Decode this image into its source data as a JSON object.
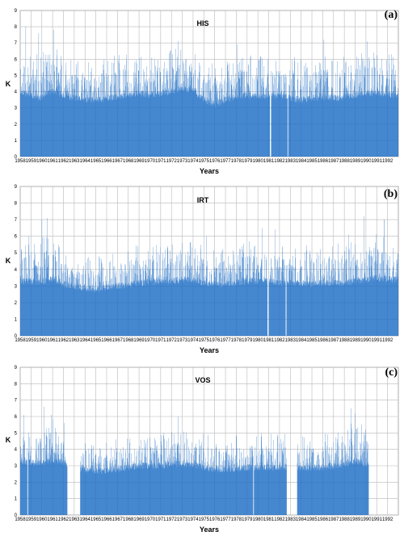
{
  "colors": {
    "series": "#1f6fc5",
    "grid": "#b8b8b8",
    "text": "#000000"
  },
  "chart_data": [
    {
      "type": "bar",
      "title": "HIS",
      "panel": "(a)",
      "xlabel": "Years",
      "ylabel": "K",
      "ylim": [
        0,
        9
      ],
      "yticks": [
        0,
        1,
        2,
        3,
        4,
        5,
        6,
        7,
        8,
        9
      ],
      "xticks": [
        "1958",
        "1959",
        "1960",
        "1961",
        "1962",
        "1963",
        "1964",
        "1965",
        "1966",
        "1967",
        "1968",
        "1969",
        "1970",
        "1971",
        "1972",
        "1973",
        "1974",
        "1975",
        "1976",
        "1977",
        "1978",
        "1979",
        "1980",
        "1981",
        "1982",
        "1983",
        "1984",
        "1985",
        "1986",
        "1987",
        "1988",
        "1989",
        "1990",
        "1991",
        "1992"
      ],
      "grid": true,
      "x_range_years": [
        1958,
        1993
      ],
      "profile": {
        "years": [
          1958,
          1959,
          1960,
          1961,
          1962,
          1963,
          1964,
          1965,
          1966,
          1967,
          1968,
          1969,
          1970,
          1971,
          1972,
          1973,
          1974,
          1975,
          1976,
          1977,
          1978,
          1979,
          1980,
          1981,
          1982,
          1983,
          1984,
          1985,
          1986,
          1987,
          1988,
          1989,
          1990,
          1991,
          1992,
          1993
        ],
        "base": [
          3.8,
          3.6,
          3.4,
          3.9,
          3.6,
          3.4,
          3.3,
          3.3,
          3.4,
          3.5,
          3.6,
          3.7,
          3.6,
          3.7,
          3.8,
          4.0,
          3.9,
          3.3,
          3.0,
          3.3,
          3.5,
          3.6,
          3.5,
          3.5,
          3.6,
          3.4,
          3.3,
          3.4,
          3.5,
          3.4,
          3.4,
          3.6,
          3.7,
          3.7,
          3.6,
          3.6
        ],
        "peak": [
          6.3,
          6.2,
          6.0,
          6.7,
          5.8,
          5.6,
          5.5,
          5.7,
          5.8,
          5.9,
          6.0,
          6.0,
          6.0,
          6.1,
          6.2,
          6.4,
          6.1,
          5.7,
          5.4,
          5.7,
          5.9,
          6.0,
          5.9,
          5.8,
          6.0,
          5.8,
          5.7,
          5.8,
          6.1,
          5.9,
          5.9,
          6.0,
          6.1,
          6.2,
          6.0,
          6.0
        ],
        "max_spikes": [
          [
            1958.5,
            8.0
          ],
          [
            1959.7,
            7.6
          ],
          [
            1961.1,
            7.8
          ],
          [
            1972.6,
            7.1
          ],
          [
            1978.1,
            6.9
          ],
          [
            1986.1,
            7.2
          ],
          [
            1990.1,
            7.1
          ],
          [
            1981.2,
            6.8
          ]
        ]
      },
      "gaps": [
        [
          1981.1,
          1981.22
        ],
        [
          1982.72,
          1982.8
        ]
      ],
      "seed": 11
    },
    {
      "type": "bar",
      "title": "IRT",
      "panel": "(b)",
      "xlabel": "Years",
      "ylabel": "K",
      "ylim": [
        0,
        9
      ],
      "yticks": [
        0,
        1,
        2,
        3,
        4,
        5,
        6,
        7,
        8,
        9
      ],
      "xticks": [
        "1958",
        "1959",
        "1960",
        "1961",
        "1962",
        "1963",
        "1964",
        "1965",
        "1966",
        "1967",
        "1968",
        "1969",
        "1970",
        "1971",
        "1972",
        "1973",
        "1974",
        "1975",
        "1976",
        "1977",
        "1978",
        "1979",
        "1980",
        "1981",
        "1982",
        "1983",
        "1984",
        "1985",
        "1986",
        "1987",
        "1988",
        "1989",
        "1990",
        "1991",
        "1992"
      ],
      "grid": true,
      "x_range_years": [
        1958,
        1993
      ],
      "profile": {
        "years": [
          1958,
          1959,
          1960,
          1961,
          1962,
          1963,
          1964,
          1965,
          1966,
          1967,
          1968,
          1969,
          1970,
          1971,
          1972,
          1973,
          1974,
          1975,
          1976,
          1977,
          1978,
          1979,
          1980,
          1981,
          1982,
          1983,
          1984,
          1985,
          1986,
          1987,
          1988,
          1989,
          1990,
          1991,
          1992,
          1993
        ],
        "base": [
          3.1,
          3.1,
          3.0,
          3.3,
          2.9,
          2.8,
          2.7,
          2.6,
          2.7,
          2.8,
          2.9,
          3.0,
          3.0,
          3.1,
          3.1,
          3.2,
          3.2,
          3.0,
          2.9,
          2.9,
          3.0,
          3.1,
          3.1,
          3.1,
          3.0,
          3.0,
          3.0,
          2.9,
          3.0,
          3.0,
          3.0,
          3.1,
          3.2,
          3.3,
          3.2,
          3.2
        ],
        "peak": [
          5.3,
          5.4,
          5.6,
          6.2,
          4.9,
          4.6,
          4.5,
          4.5,
          4.7,
          4.9,
          5.0,
          5.2,
          5.1,
          5.3,
          5.4,
          5.6,
          5.5,
          5.2,
          5.0,
          5.1,
          5.2,
          5.4,
          5.3,
          5.3,
          5.3,
          5.2,
          5.2,
          5.1,
          5.2,
          5.3,
          5.2,
          5.4,
          5.8,
          5.8,
          5.6,
          5.6
        ],
        "max_spikes": [
          [
            1960.0,
            7.0
          ],
          [
            1960.5,
            7.1
          ],
          [
            1958.8,
            6.0
          ],
          [
            1980.4,
            6.5
          ],
          [
            1981.6,
            6.4
          ],
          [
            1989.8,
            7.2
          ],
          [
            1991.7,
            7.0
          ],
          [
            1975.2,
            6.0
          ],
          [
            1988.4,
            6.1
          ]
        ]
      },
      "gaps": [
        [
          1980.88,
          1981.0
        ],
        [
          1982.55,
          1982.63
        ]
      ],
      "seed": 29
    },
    {
      "type": "bar",
      "title": "VOS",
      "panel": "(c)",
      "xlabel": "Years",
      "ylabel": "K",
      "ylim": [
        0,
        9
      ],
      "yticks": [
        0,
        1,
        2,
        3,
        4,
        5,
        6,
        7,
        8,
        9
      ],
      "xticks": [
        "1958",
        "1959",
        "1960",
        "1961",
        "1962",
        "1963",
        "1964",
        "1965",
        "1966",
        "1967",
        "1968",
        "1969",
        "1970",
        "1971",
        "1972",
        "1973",
        "1974",
        "1975",
        "1976",
        "1977",
        "1978",
        "1979",
        "1980",
        "1981",
        "1982",
        "1983",
        "1984",
        "1985",
        "1986",
        "1987",
        "1988",
        "1989",
        "1990",
        "1991",
        "1992"
      ],
      "grid": true,
      "x_range_years": [
        1958,
        1993
      ],
      "profile": {
        "years": [
          1958,
          1959,
          1960,
          1961,
          1962,
          1963,
          1964,
          1965,
          1966,
          1967,
          1968,
          1969,
          1970,
          1971,
          1972,
          1973,
          1974,
          1975,
          1976,
          1977,
          1978,
          1979,
          1980,
          1981,
          1982,
          1983,
          1984,
          1985,
          1986,
          1987,
          1988,
          1989,
          1990,
          1991,
          1992,
          1993
        ],
        "base": [
          3.1,
          3.0,
          3.0,
          3.2,
          3.0,
          2.6,
          2.6,
          2.5,
          2.5,
          2.6,
          2.7,
          2.8,
          2.8,
          2.8,
          2.9,
          2.9,
          2.9,
          2.7,
          2.6,
          2.6,
          2.6,
          2.7,
          2.7,
          2.7,
          2.7,
          2.7,
          2.7,
          2.7,
          2.7,
          2.8,
          2.9,
          3.1,
          2.9,
          2.9,
          2.9,
          2.9
        ],
        "peak": [
          5.0,
          5.2,
          5.3,
          5.8,
          4.8,
          4.3,
          4.2,
          4.2,
          4.3,
          4.4,
          4.5,
          4.6,
          4.6,
          4.7,
          4.8,
          4.9,
          4.9,
          4.7,
          4.5,
          4.5,
          4.6,
          4.7,
          4.7,
          4.7,
          4.7,
          4.6,
          4.6,
          4.6,
          4.7,
          4.8,
          4.9,
          5.5,
          5.0,
          5.0,
          5.0,
          5.0
        ],
        "max_spikes": [
          [
            1958.3,
            6.1
          ],
          [
            1960.2,
            6.6
          ],
          [
            1960.9,
            6.1
          ],
          [
            1962.1,
            5.6
          ],
          [
            1972.6,
            6.0
          ],
          [
            1988.6,
            6.5
          ],
          [
            1989.0,
            6.2
          ],
          [
            1979.6,
            5.3
          ]
        ]
      },
      "gaps": [
        [
          1958.65,
          1958.72
        ],
        [
          1962.35,
          1963.55
        ],
        [
          1979.55,
          1979.62
        ],
        [
          1982.65,
          1983.62
        ],
        [
          1990.25,
          1993.0
        ]
      ],
      "seed": 47
    }
  ]
}
